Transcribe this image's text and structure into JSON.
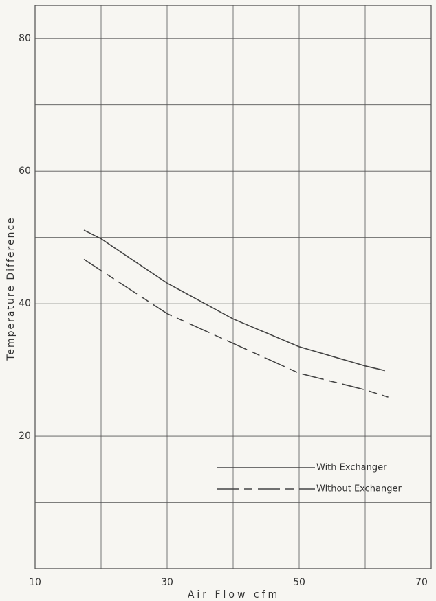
{
  "chart_data": {
    "type": "line",
    "x_label": "Air Flow   cfm",
    "y_label": "Temperature Difference",
    "xlim": [
      10,
      70
    ],
    "xticks": [
      10,
      30,
      50,
      70
    ],
    "xgrid": [
      10,
      20,
      30,
      40,
      50,
      60,
      70
    ],
    "ylim": [
      0,
      85
    ],
    "yticks": [
      20,
      40,
      60,
      80
    ],
    "ygrid": [
      10,
      20,
      30,
      40,
      50,
      60,
      70,
      80
    ],
    "legend": "lower right",
    "series": [
      {
        "name": "With Exchanger",
        "color": "#444",
        "dash": "solid",
        "x": [
          17.4,
          20,
          30,
          40,
          50,
          60,
          63
        ],
        "values": [
          51.1,
          49.8,
          43.1,
          37.7,
          33.5,
          30.6,
          29.9
        ]
      },
      {
        "name": "Without Exchanger",
        "color": "#444",
        "dash": "dashed",
        "x": [
          17.4,
          20,
          30,
          40,
          50,
          60,
          63.5
        ],
        "values": [
          46.7,
          45.0,
          38.5,
          34.0,
          29.5,
          27.0,
          25.9
        ]
      }
    ]
  }
}
